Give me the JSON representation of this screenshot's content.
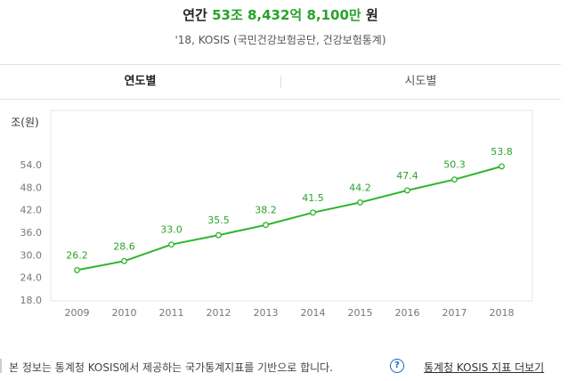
{
  "header": {
    "prefix": "연간",
    "amount": "53조 8,432억 8,100만",
    "unit": "원",
    "source": "'18, KOSIS (국민건강보험공단, 건강보험통계)"
  },
  "tabs": [
    "연도별",
    "시도별"
  ],
  "chart_data": {
    "type": "line",
    "y_label": "조(원)",
    "categories": [
      "2009",
      "2010",
      "2011",
      "2012",
      "2013",
      "2014",
      "2015",
      "2016",
      "2017",
      "2018"
    ],
    "series": [
      {
        "name": "연간",
        "color": "#2db52d",
        "values": [
          26.2,
          28.6,
          33.0,
          35.5,
          38.2,
          41.5,
          44.2,
          47.4,
          50.3,
          53.8
        ],
        "value_labels": [
          "26.2",
          "28.6",
          "33.0",
          "35.5",
          "38.2",
          "41.5",
          "44.2",
          "47.4",
          "50.3",
          "53.8"
        ]
      }
    ],
    "ylim": [
      18,
      68.7
    ],
    "yticks": [
      {
        "value": 18,
        "label": "18.0"
      },
      {
        "value": 24,
        "label": "24.0"
      },
      {
        "value": 30,
        "label": "30.0"
      },
      {
        "value": 36,
        "label": "36.0"
      },
      {
        "value": 42,
        "label": "42.0"
      },
      {
        "value": 48,
        "label": "48.0"
      },
      {
        "value": 54,
        "label": "54.0"
      }
    ],
    "grid": false
  },
  "footer": {
    "text": "본 정보는 통계청 KOSIS에서 제공하는 국가통계지표를 기반으로 합니다.",
    "help": "?",
    "link": "통계청 KOSIS 지표 더보기"
  }
}
